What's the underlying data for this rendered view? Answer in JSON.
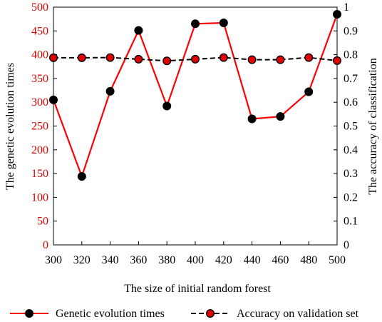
{
  "chart_data": {
    "type": "line",
    "xlabel": "The size of initial random forest",
    "ylabel_left": "The genetic evolution times",
    "ylabel_right": "The accuracy of classification",
    "x": [
      300,
      320,
      340,
      360,
      380,
      400,
      420,
      440,
      460,
      480,
      500
    ],
    "x_ticks": [
      "300",
      "320",
      "340",
      "360",
      "380",
      "400",
      "420",
      "440",
      "460",
      "480",
      "500"
    ],
    "ylim_left": [
      0,
      500
    ],
    "y_ticks_left": [
      "0",
      "50",
      "100",
      "150",
      "200",
      "250",
      "300",
      "350",
      "400",
      "450",
      "500"
    ],
    "ylim_right": [
      0,
      1
    ],
    "y_ticks_right": [
      "0",
      "0.1",
      "0.2",
      "0.3",
      "0.4",
      "0.5",
      "0.6",
      "0.7",
      "0.8",
      "0.9",
      "1"
    ],
    "grid": "off",
    "legend_position": "bottom",
    "series": [
      {
        "name": "Genetic evolution times",
        "axis": "left",
        "line_style": "solid",
        "line_color": "#ff0000",
        "marker_color": "#000000",
        "values": [
          305,
          144,
          323,
          451,
          292,
          465,
          467,
          265,
          270,
          322,
          485
        ]
      },
      {
        "name": "Accuracy on validation set",
        "axis": "right",
        "line_style": "dashed",
        "line_color": "#000000",
        "marker_color": "#e00000",
        "values": [
          0.787,
          0.787,
          0.788,
          0.781,
          0.774,
          0.781,
          0.788,
          0.779,
          0.779,
          0.788,
          0.775
        ]
      }
    ]
  }
}
